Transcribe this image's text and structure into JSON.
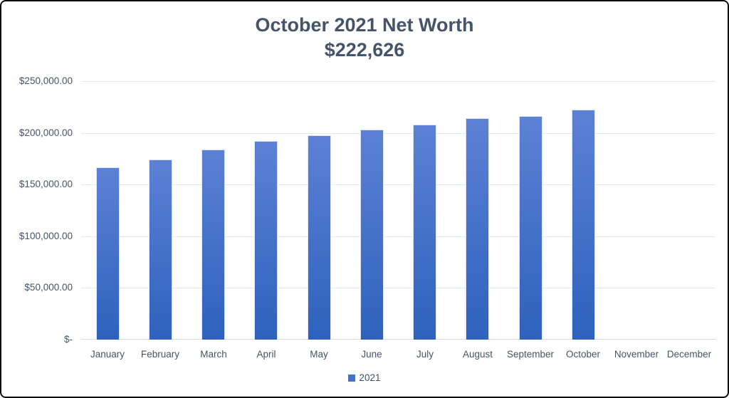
{
  "chart_data": {
    "type": "bar",
    "title": "October 2021 Net Worth",
    "subtitle": "$222,626",
    "categories": [
      "January",
      "February",
      "March",
      "April",
      "May",
      "June",
      "July",
      "August",
      "September",
      "October",
      "November",
      "December"
    ],
    "series": [
      {
        "name": "2021",
        "values": [
          167000,
          174000,
          184000,
          192000,
          198000,
          203000,
          208000,
          214500,
          216000,
          222626,
          null,
          null
        ]
      }
    ],
    "xlabel": "",
    "ylabel": "",
    "ylim": [
      0,
      250000
    ],
    "ytick_interval": 50000,
    "yticks": [
      {
        "value": 0,
        "label": "$-"
      },
      {
        "value": 50000,
        "label": "$50,000.00"
      },
      {
        "value": 100000,
        "label": "$100,000.00"
      },
      {
        "value": 150000,
        "label": "$150,000.00"
      },
      {
        "value": 200000,
        "label": "$200,000.00"
      },
      {
        "value": 250000,
        "label": "$250,000.00"
      }
    ],
    "grid": true,
    "legend_position": "bottom"
  },
  "colors": {
    "title_text": "#44546A",
    "axis_text": "#44546A",
    "bar_gradient_top": "#5C81D5",
    "bar_gradient_bottom": "#2E62BC",
    "bar_border": "#DCE4F5",
    "gridline": "#E4E8F0",
    "axis_line": "#D5DAE3",
    "legend_marker": "#4472C4",
    "frame_border": "#0B0B0B",
    "background": "#FFFFFF"
  }
}
